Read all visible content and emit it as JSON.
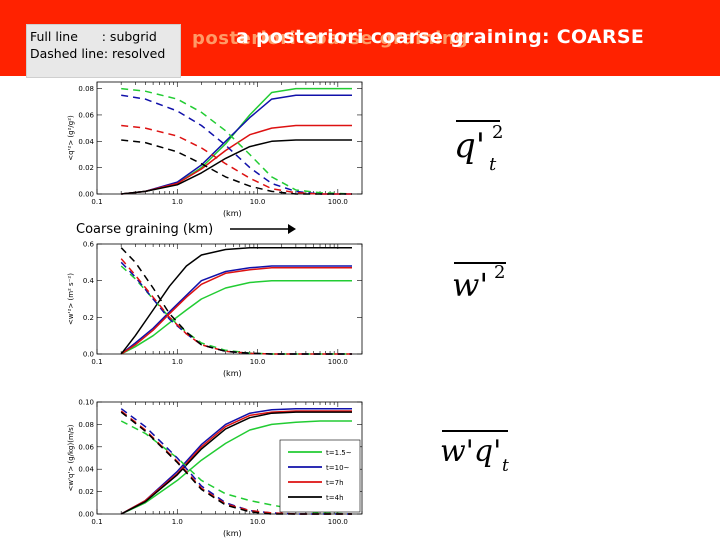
{
  "slide": {
    "legend": {
      "full_line": "Full line      : subgrid",
      "dashed_line": "Dashed line: resolved"
    },
    "title_ghost": "posteriori coarse graining",
    "title": "a posteriori coarse graining: COARSE",
    "coarse_label": "Coarse graining (km)",
    "equations": {
      "q": {
        "main": "q'",
        "sup": "2",
        "sub": "t"
      },
      "w": {
        "main": "w'",
        "sup": "2"
      },
      "wq": {
        "main": "w'q'",
        "sub": "t"
      }
    }
  },
  "colors": {
    "header": "#ff2200",
    "green": "#22cc33",
    "blue": "#1111aa",
    "red": "#dd1111",
    "black": "#000000"
  },
  "chart_data": [
    {
      "type": "line",
      "xscale": "log",
      "xlim": [
        0.1,
        200
      ],
      "xticks": [
        0.1,
        1.0,
        10.0,
        100.0
      ],
      "xticklabels": [
        "0.1",
        "1.0",
        "10.0",
        "100.0"
      ],
      "xlabel": "(km)",
      "ylim": [
        0,
        0.085
      ],
      "yticks": [
        0.0,
        0.02,
        0.04,
        0.06,
        0.08
      ],
      "yticklabels": [
        "0.00",
        "0.02",
        "0.04",
        "0.06",
        "0.08"
      ],
      "ylabel": "<q'²> (g²/g²)",
      "x": [
        0.2,
        0.4,
        1,
        2,
        4,
        8,
        15,
        30,
        60,
        150
      ],
      "series": [
        {
          "color": "green",
          "style": "solid",
          "values": [
            0,
            0.002,
            0.008,
            0.02,
            0.038,
            0.06,
            0.077,
            0.08,
            0.08,
            0.08
          ]
        },
        {
          "color": "blue",
          "style": "solid",
          "values": [
            0,
            0.002,
            0.009,
            0.022,
            0.04,
            0.058,
            0.072,
            0.075,
            0.075,
            0.075
          ]
        },
        {
          "color": "red",
          "style": "solid",
          "values": [
            0,
            0.002,
            0.008,
            0.019,
            0.033,
            0.045,
            0.05,
            0.052,
            0.052,
            0.052
          ]
        },
        {
          "color": "black",
          "style": "solid",
          "values": [
            0,
            0.002,
            0.007,
            0.016,
            0.027,
            0.036,
            0.04,
            0.041,
            0.041,
            0.041
          ]
        },
        {
          "color": "green",
          "style": "dashed",
          "values": [
            0.08,
            0.078,
            0.072,
            0.062,
            0.048,
            0.03,
            0.013,
            0.003,
            0.001,
            0.0
          ]
        },
        {
          "color": "blue",
          "style": "dashed",
          "values": [
            0.075,
            0.072,
            0.063,
            0.052,
            0.037,
            0.02,
            0.008,
            0.002,
            0.0,
            0.0
          ]
        },
        {
          "color": "red",
          "style": "dashed",
          "values": [
            0.052,
            0.05,
            0.044,
            0.035,
            0.023,
            0.012,
            0.004,
            0.001,
            0.0,
            0.0
          ]
        },
        {
          "color": "black",
          "style": "dashed",
          "values": [
            0.041,
            0.039,
            0.032,
            0.023,
            0.013,
            0.006,
            0.002,
            0.0,
            0.0,
            0.0
          ]
        }
      ]
    },
    {
      "type": "line",
      "xscale": "log",
      "xlim": [
        0.1,
        200
      ],
      "xticks": [
        0.1,
        1.0,
        10.0,
        100.0
      ],
      "xticklabels": [
        "0.1",
        "1.0",
        "10.0",
        "100.0"
      ],
      "xlabel": "(km)",
      "ylim": [
        0,
        0.6
      ],
      "yticks": [
        0.0,
        0.2,
        0.4,
        0.6
      ],
      "yticklabels": [
        "0.0",
        "0.2",
        "0.4",
        "0.6"
      ],
      "ylabel": "<w'²> (m² s⁻²)",
      "x": [
        0.2,
        0.3,
        0.5,
        0.8,
        1.3,
        2,
        4,
        8,
        15,
        30,
        60,
        150
      ],
      "series": [
        {
          "color": "green",
          "style": "solid",
          "values": [
            0,
            0.04,
            0.1,
            0.17,
            0.24,
            0.3,
            0.36,
            0.39,
            0.4,
            0.4,
            0.4,
            0.4
          ]
        },
        {
          "color": "blue",
          "style": "solid",
          "values": [
            0,
            0.06,
            0.14,
            0.23,
            0.32,
            0.4,
            0.45,
            0.47,
            0.48,
            0.48,
            0.48,
            0.48
          ]
        },
        {
          "color": "red",
          "style": "solid",
          "values": [
            0,
            0.05,
            0.13,
            0.22,
            0.31,
            0.38,
            0.44,
            0.46,
            0.47,
            0.47,
            0.47,
            0.47
          ]
        },
        {
          "color": "black",
          "style": "solid",
          "values": [
            0,
            0.1,
            0.24,
            0.37,
            0.48,
            0.54,
            0.57,
            0.58,
            0.58,
            0.58,
            0.58,
            0.58
          ]
        },
        {
          "color": "green",
          "style": "dashed",
          "values": [
            0.48,
            0.41,
            0.3,
            0.2,
            0.12,
            0.06,
            0.02,
            0.005,
            0.0,
            0.0,
            0.0,
            0.0
          ]
        },
        {
          "color": "blue",
          "style": "dashed",
          "values": [
            0.5,
            0.42,
            0.3,
            0.19,
            0.11,
            0.05,
            0.015,
            0.004,
            0.0,
            0.0,
            0.0,
            0.0
          ]
        },
        {
          "color": "red",
          "style": "dashed",
          "values": [
            0.52,
            0.43,
            0.31,
            0.2,
            0.11,
            0.05,
            0.015,
            0.004,
            0.0,
            0.0,
            0.0,
            0.0
          ]
        },
        {
          "color": "black",
          "style": "dashed",
          "values": [
            0.58,
            0.5,
            0.36,
            0.22,
            0.12,
            0.05,
            0.015,
            0.004,
            0.0,
            0.0,
            0.0,
            0.0
          ]
        }
      ]
    },
    {
      "type": "line",
      "xscale": "log",
      "xlim": [
        0.1,
        200
      ],
      "xticks": [
        0.1,
        1.0,
        10.0,
        100.0
      ],
      "xticklabels": [
        "0.1",
        "1.0",
        "10.0",
        "100.0"
      ],
      "xlabel": "(km)",
      "ylim": [
        0,
        0.1
      ],
      "yticks": [
        0.0,
        0.02,
        0.04,
        0.06,
        0.08,
        0.1
      ],
      "yticklabels": [
        "0.00",
        "0.02",
        "0.04",
        "0.06",
        "0.08",
        "0.10"
      ],
      "ylabel": "<w'q'> (g/kg)(m/s)",
      "x": [
        0.2,
        0.4,
        1,
        2,
        4,
        8,
        15,
        30,
        60,
        150
      ],
      "series": [
        {
          "color": "green",
          "style": "solid",
          "values": [
            0,
            0.01,
            0.03,
            0.048,
            0.063,
            0.075,
            0.08,
            0.082,
            0.083,
            0.083
          ]
        },
        {
          "color": "blue",
          "style": "solid",
          "values": [
            0,
            0.012,
            0.038,
            0.062,
            0.08,
            0.09,
            0.093,
            0.094,
            0.094,
            0.094
          ]
        },
        {
          "color": "red",
          "style": "solid",
          "values": [
            0,
            0.012,
            0.036,
            0.06,
            0.078,
            0.088,
            0.091,
            0.092,
            0.092,
            0.092
          ]
        },
        {
          "color": "black",
          "style": "solid",
          "values": [
            0,
            0.011,
            0.035,
            0.058,
            0.076,
            0.086,
            0.09,
            0.091,
            0.091,
            0.091
          ]
        },
        {
          "color": "green",
          "style": "dashed",
          "values": [
            0.083,
            0.072,
            0.05,
            0.03,
            0.018,
            0.012,
            0.008,
            0.004,
            0.001,
            0.0
          ]
        },
        {
          "color": "blue",
          "style": "dashed",
          "values": [
            0.094,
            0.078,
            0.05,
            0.025,
            0.01,
            0.003,
            0.001,
            0.0,
            0.0,
            0.0
          ]
        },
        {
          "color": "red",
          "style": "dashed",
          "values": [
            0.092,
            0.075,
            0.047,
            0.023,
            0.009,
            0.003,
            0.001,
            0.0,
            0.0,
            0.0
          ]
        },
        {
          "color": "black",
          "style": "dashed",
          "values": [
            0.091,
            0.074,
            0.046,
            0.022,
            0.008,
            0.002,
            0.0,
            0.0,
            0.0,
            0.0
          ]
        }
      ],
      "legend": {
        "position": "bottom-right",
        "entries": [
          {
            "label": "t=1.5~",
            "color": "green"
          },
          {
            "label": "t=10~",
            "color": "blue"
          },
          {
            "label": "t=7h",
            "color": "red"
          },
          {
            "label": "t=4h",
            "color": "black"
          }
        ]
      }
    }
  ]
}
